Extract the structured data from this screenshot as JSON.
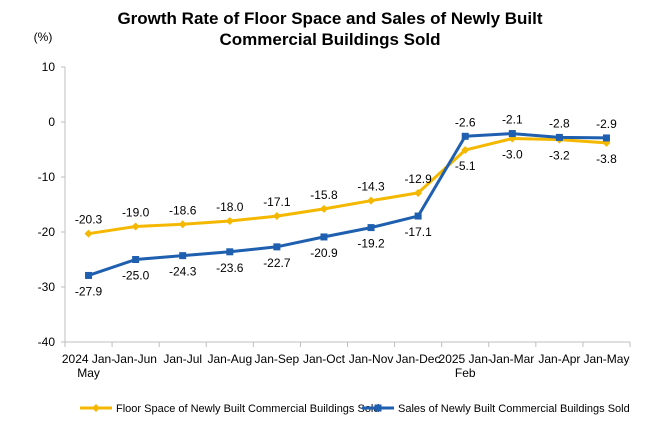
{
  "chart_data": {
    "type": "line",
    "title_lines": [
      "Growth Rate of Floor Space and Sales of Newly Built",
      "Commercial Buildings Sold"
    ],
    "ylabel": "(%)",
    "ylim": [
      -40,
      10
    ],
    "yticks": [
      10,
      0,
      -10,
      -20,
      -30,
      -40
    ],
    "categories": [
      [
        "2024 Jan-",
        "May"
      ],
      [
        "Jan-Jun"
      ],
      [
        "Jan-Jul"
      ],
      [
        "Jan-Aug"
      ],
      [
        "Jan-Sep"
      ],
      [
        "Jan-Oct"
      ],
      [
        "Jan-Nov"
      ],
      [
        "Jan-Dec"
      ],
      [
        "2025 Jan-",
        "Feb"
      ],
      [
        "Jan-Mar"
      ],
      [
        "Jan-Apr"
      ],
      [
        "Jan-May"
      ]
    ],
    "series": [
      {
        "name": "Floor Space of Newly Built Commercial Buildings Sold",
        "color": "#F5B800",
        "marker": "diamond",
        "values": [
          -20.3,
          -19.0,
          -18.6,
          -18.0,
          -17.1,
          -15.8,
          -14.3,
          -12.9,
          -5.1,
          -3.0,
          -3.2,
          -3.8
        ],
        "labels": [
          "-20.3",
          "-19.0",
          "-18.6",
          "-18.0",
          "-17.1",
          "-15.8",
          "-14.3",
          "-12.9",
          "-5.1",
          "-3.0",
          "-3.2",
          "-3.8"
        ]
      },
      {
        "name": "Sales of Newly Built Commercial Buildings Sold",
        "color": "#1F5FAF",
        "marker": "square",
        "values": [
          -27.9,
          -25.0,
          -24.3,
          -23.6,
          -22.7,
          -20.9,
          -19.2,
          -17.1,
          -2.6,
          -2.1,
          -2.8,
          -2.9
        ],
        "labels": [
          "-27.9",
          "-25.0",
          "-24.3",
          "-23.6",
          "-22.7",
          "-20.9",
          "-19.2",
          "-17.1",
          "-2.6",
          "-2.1",
          "-2.8",
          "-2.9"
        ]
      }
    ],
    "legend_position": "bottom",
    "grid": false
  }
}
